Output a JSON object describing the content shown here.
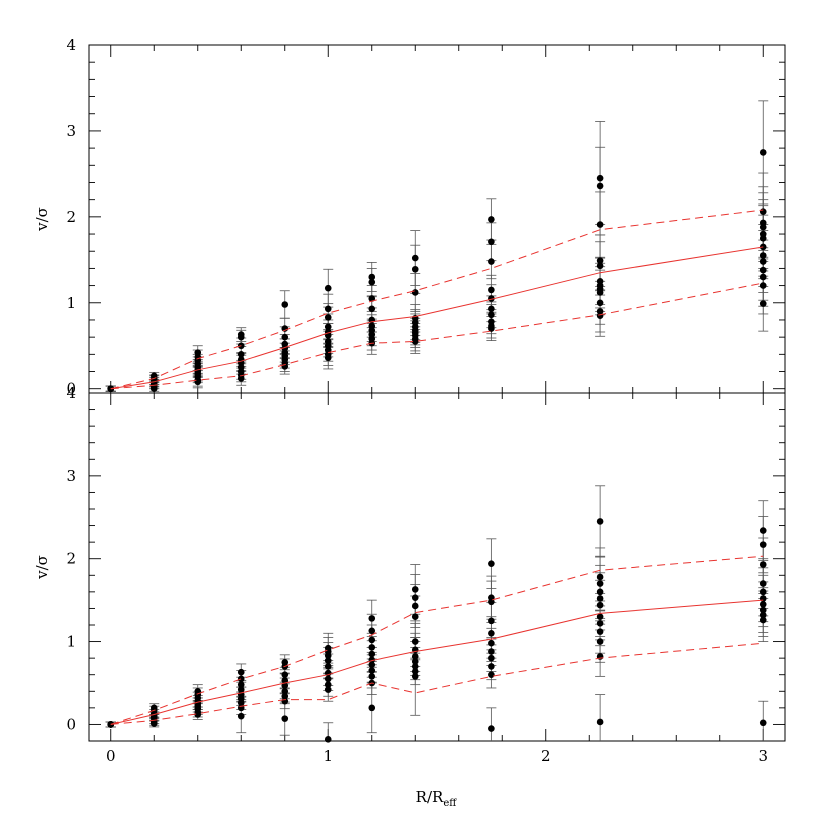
{
  "chart_data": [
    {
      "type": "scatter",
      "panel": "top",
      "xlabel": "R/R",
      "xlabel_sub": "eff",
      "ylabel": "v/σ",
      "xlim": [
        -0.1,
        3.1
      ],
      "ylim": [
        -0.05,
        4
      ],
      "xticks": [
        "0",
        "1",
        "2",
        "3"
      ],
      "yticks": [
        "0",
        "1",
        "2",
        "3",
        "4"
      ],
      "groups": [
        {
          "x": 0.0,
          "values": [
            0.0,
            0.0,
            0.0,
            0.0,
            0.0,
            0.0
          ],
          "err": [
            0.03,
            0.03,
            0.03,
            0.03,
            0.03,
            0.03
          ]
        },
        {
          "x": 0.2,
          "values": [
            0.15,
            0.12,
            0.1,
            0.08,
            0.06,
            0.05,
            0.04,
            0.02,
            0.0
          ],
          "err": [
            0.04,
            0.04,
            0.05,
            0.05,
            0.04,
            0.05,
            0.04,
            0.05,
            0.05
          ]
        },
        {
          "x": 0.4,
          "values": [
            0.42,
            0.37,
            0.33,
            0.29,
            0.25,
            0.22,
            0.2,
            0.17,
            0.14,
            0.1,
            0.08
          ],
          "err": [
            0.08,
            0.08,
            0.07,
            0.08,
            0.07,
            0.08,
            0.07,
            0.08,
            0.07,
            0.07,
            0.07
          ]
        },
        {
          "x": 0.6,
          "values": [
            0.63,
            0.6,
            0.5,
            0.4,
            0.34,
            0.3,
            0.25,
            0.2,
            0.16,
            0.12
          ],
          "err": [
            0.08,
            0.08,
            0.09,
            0.09,
            0.08,
            0.09,
            0.08,
            0.09,
            0.08,
            0.08
          ]
        },
        {
          "x": 0.8,
          "values": [
            0.98,
            0.7,
            0.6,
            0.52,
            0.47,
            0.42,
            0.38,
            0.34,
            0.3,
            0.26
          ],
          "err": [
            0.16,
            0.12,
            0.12,
            0.11,
            0.11,
            0.11,
            0.1,
            0.1,
            0.1,
            0.09
          ]
        },
        {
          "x": 1.0,
          "values": [
            1.17,
            0.93,
            0.83,
            0.72,
            0.66,
            0.62,
            0.55,
            0.5,
            0.45,
            0.4,
            0.36
          ],
          "err": [
            0.22,
            0.17,
            0.16,
            0.15,
            0.14,
            0.14,
            0.14,
            0.13,
            0.13,
            0.13,
            0.13
          ]
        },
        {
          "x": 1.2,
          "values": [
            1.3,
            1.24,
            1.05,
            0.93,
            0.8,
            0.73,
            0.68,
            0.63,
            0.58,
            0.53
          ],
          "err": [
            0.17,
            0.16,
            0.15,
            0.14,
            0.14,
            0.13,
            0.13,
            0.13,
            0.13,
            0.13
          ]
        },
        {
          "x": 1.4,
          "values": [
            1.52,
            1.39,
            1.12,
            0.82,
            0.77,
            0.72,
            0.68,
            0.65,
            0.62,
            0.58,
            0.55
          ],
          "err": [
            0.32,
            0.28,
            0.22,
            0.16,
            0.15,
            0.15,
            0.14,
            0.14,
            0.14,
            0.14,
            0.14
          ]
        },
        {
          "x": 1.75,
          "values": [
            1.97,
            1.71,
            1.48,
            1.15,
            1.05,
            0.93,
            0.86,
            0.78,
            0.73,
            0.7
          ],
          "err": [
            0.24,
            0.22,
            0.2,
            0.17,
            0.16,
            0.15,
            0.15,
            0.14,
            0.14,
            0.14
          ]
        },
        {
          "x": 2.25,
          "values": [
            2.45,
            2.36,
            1.91,
            1.49,
            1.43,
            1.25,
            1.2,
            1.16,
            1.12,
            1.0,
            0.9,
            0.85
          ],
          "err": [
            0.66,
            0.45,
            0.38,
            0.3,
            0.28,
            0.27,
            0.26,
            0.26,
            0.26,
            0.25,
            0.24,
            0.24
          ]
        },
        {
          "x": 3.0,
          "values": [
            2.75,
            2.06,
            1.93,
            1.88,
            1.8,
            1.75,
            1.65,
            1.55,
            1.48,
            1.38,
            1.3,
            1.2,
            0.99
          ],
          "err": [
            0.6,
            0.45,
            0.42,
            0.4,
            0.4,
            0.38,
            0.37,
            0.36,
            0.36,
            0.35,
            0.34,
            0.33,
            0.32
          ]
        }
      ],
      "median_line": {
        "x": [
          0,
          0.2,
          0.4,
          0.6,
          0.8,
          1.0,
          1.2,
          1.4,
          1.75,
          2.25,
          3.0
        ],
        "y": [
          0.0,
          0.08,
          0.22,
          0.32,
          0.48,
          0.65,
          0.78,
          0.84,
          1.04,
          1.35,
          1.65
        ]
      },
      "upper_line": {
        "x": [
          0,
          0.2,
          0.4,
          0.6,
          0.8,
          1.0,
          1.2,
          1.4,
          1.75,
          2.25,
          3.0
        ],
        "y": [
          0.0,
          0.12,
          0.35,
          0.5,
          0.68,
          0.88,
          1.02,
          1.14,
          1.4,
          1.85,
          2.08
        ]
      },
      "lower_line": {
        "x": [
          0,
          0.2,
          0.4,
          0.6,
          0.8,
          1.0,
          1.2,
          1.4,
          1.75,
          2.25,
          3.0
        ],
        "y": [
          0.0,
          0.04,
          0.1,
          0.15,
          0.28,
          0.42,
          0.53,
          0.55,
          0.67,
          0.86,
          1.23
        ]
      }
    },
    {
      "type": "scatter",
      "panel": "bottom",
      "xlabel": "R/R",
      "xlabel_sub": "eff",
      "ylabel": "v/σ",
      "xlim": [
        -0.1,
        3.1
      ],
      "ylim": [
        -0.2,
        4
      ],
      "xticks": [
        "0",
        "1",
        "2",
        "3"
      ],
      "yticks": [
        "0",
        "1",
        "2",
        "3",
        "4"
      ],
      "groups": [
        {
          "x": 0.0,
          "values": [
            0.0,
            0.0,
            0.0,
            0.0,
            0.0,
            0.0
          ],
          "err": [
            0.03,
            0.03,
            0.03,
            0.03,
            0.03,
            0.03
          ]
        },
        {
          "x": 0.2,
          "values": [
            0.2,
            0.17,
            0.13,
            0.1,
            0.08,
            0.05,
            0.03,
            0.01
          ],
          "err": [
            0.05,
            0.05,
            0.05,
            0.05,
            0.04,
            0.04,
            0.04,
            0.04
          ]
        },
        {
          "x": 0.4,
          "values": [
            0.4,
            0.36,
            0.32,
            0.28,
            0.25,
            0.22,
            0.19,
            0.15,
            0.12
          ],
          "err": [
            0.08,
            0.08,
            0.07,
            0.07,
            0.07,
            0.07,
            0.07,
            0.06,
            0.06
          ]
        },
        {
          "x": 0.6,
          "values": [
            0.63,
            0.55,
            0.48,
            0.42,
            0.36,
            0.31,
            0.26,
            0.2,
            0.1
          ],
          "err": [
            0.1,
            0.1,
            0.09,
            0.09,
            0.09,
            0.08,
            0.08,
            0.08,
            0.2
          ]
        },
        {
          "x": 0.8,
          "values": [
            0.75,
            0.7,
            0.6,
            0.53,
            0.47,
            0.4,
            0.34,
            0.28,
            0.07
          ],
          "err": [
            0.09,
            0.09,
            0.09,
            0.09,
            0.09,
            0.09,
            0.09,
            0.09,
            0.2
          ]
        },
        {
          "x": 1.0,
          "values": [
            0.92,
            0.88,
            0.83,
            0.77,
            0.7,
            0.62,
            0.55,
            0.48,
            0.42,
            -0.18
          ],
          "err": [
            0.18,
            0.17,
            0.16,
            0.16,
            0.15,
            0.15,
            0.14,
            0.14,
            0.14,
            0.2
          ]
        },
        {
          "x": 1.2,
          "values": [
            1.28,
            1.13,
            1.02,
            0.93,
            0.85,
            0.78,
            0.72,
            0.65,
            0.58,
            0.5,
            0.2
          ],
          "err": [
            0.22,
            0.2,
            0.18,
            0.17,
            0.16,
            0.15,
            0.15,
            0.14,
            0.14,
            0.14,
            0.3
          ]
        },
        {
          "x": 1.4,
          "values": [
            1.63,
            1.53,
            1.43,
            1.3,
            1.0,
            0.9,
            0.82,
            0.76,
            0.7,
            0.64,
            0.58
          ],
          "err": [
            0.3,
            0.28,
            0.26,
            0.25,
            0.22,
            0.2,
            0.18,
            0.17,
            0.16,
            0.16,
            0.47
          ]
        },
        {
          "x": 1.75,
          "values": [
            1.94,
            1.53,
            1.48,
            1.25,
            1.1,
            0.98,
            0.88,
            0.8,
            0.7,
            0.6,
            -0.05
          ],
          "err": [
            0.3,
            0.26,
            0.25,
            0.22,
            0.2,
            0.18,
            0.17,
            0.16,
            0.16,
            0.16,
            0.25
          ]
        },
        {
          "x": 2.25,
          "values": [
            2.45,
            1.78,
            1.7,
            1.6,
            1.52,
            1.44,
            1.3,
            1.22,
            1.12,
            1.0,
            0.82,
            0.03
          ],
          "err": [
            0.43,
            0.35,
            0.33,
            0.32,
            0.31,
            0.3,
            0.28,
            0.27,
            0.26,
            0.25,
            0.24,
            0.33
          ]
        },
        {
          "x": 3.0,
          "values": [
            2.34,
            2.17,
            1.93,
            1.7,
            1.6,
            1.52,
            1.45,
            1.38,
            1.32,
            1.26,
            0.02
          ],
          "err": [
            0.36,
            0.34,
            0.32,
            0.3,
            0.29,
            0.28,
            0.27,
            0.27,
            0.26,
            0.26,
            0.26
          ]
        }
      ],
      "median_line": {
        "x": [
          0,
          0.2,
          0.4,
          0.6,
          0.8,
          1.0,
          1.2,
          1.4,
          1.75,
          2.25,
          3.0
        ],
        "y": [
          0.0,
          0.12,
          0.27,
          0.38,
          0.5,
          0.6,
          0.77,
          0.88,
          1.03,
          1.34,
          1.5
        ]
      },
      "upper_line": {
        "x": [
          0,
          0.2,
          0.4,
          0.6,
          0.8,
          1.0,
          1.2,
          1.4,
          1.75,
          2.25,
          3.0
        ],
        "y": [
          0.0,
          0.17,
          0.37,
          0.55,
          0.7,
          0.9,
          1.08,
          1.35,
          1.5,
          1.86,
          2.03
        ]
      },
      "lower_line": {
        "x": [
          0,
          0.2,
          0.4,
          0.6,
          0.8,
          1.0,
          1.2,
          1.4,
          1.75,
          2.25,
          3.0
        ],
        "y": [
          0.0,
          0.05,
          0.13,
          0.22,
          0.3,
          0.3,
          0.5,
          0.38,
          0.58,
          0.8,
          0.98
        ]
      }
    }
  ]
}
